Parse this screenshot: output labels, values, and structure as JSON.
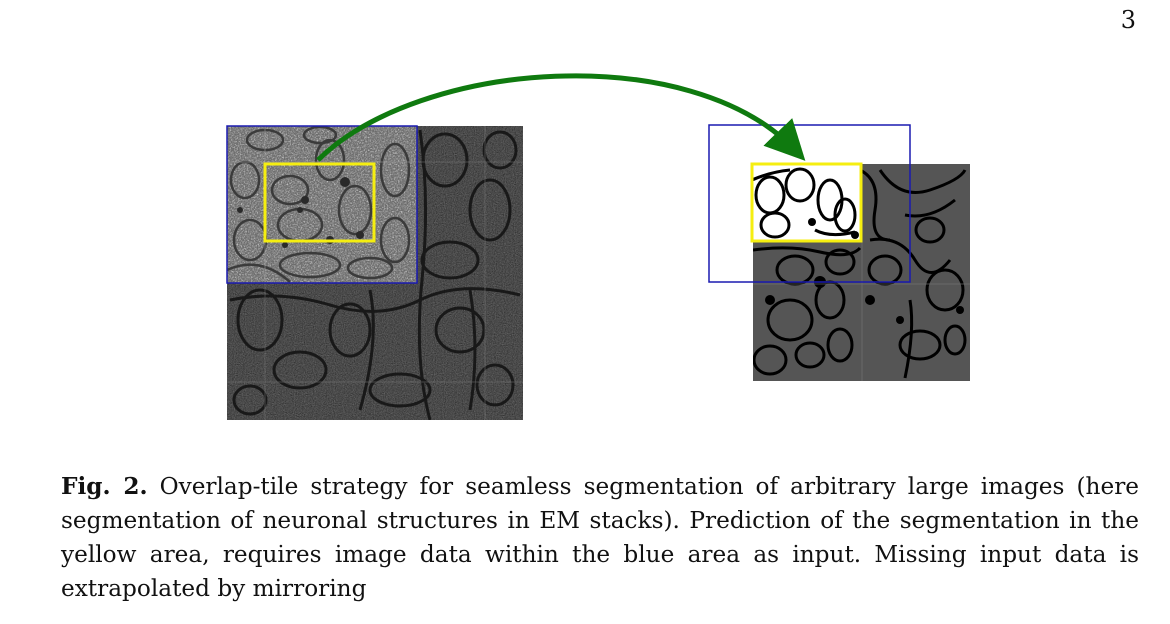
{
  "page": {
    "number": "3"
  },
  "figure": {
    "label": "Fig. 2.",
    "caption": " Overlap-tile strategy for seamless segmentation of arbitrary large images (here segmentation of neuronal structures in EM stacks). Prediction of the segmentation in the yellow area, requires image data within the blue area as input. Missing input data is extrapolated by mirroring",
    "colors": {
      "input_region": "#1a1ab0",
      "output_region": "#f5ee10",
      "arrow": "#0f7a0f",
      "em_tile": "#c8c8c8",
      "mirrored_tile": "#2e2e2e",
      "segmentation_bg": "#555555",
      "segmentation_fg": "#ffffff"
    }
  }
}
